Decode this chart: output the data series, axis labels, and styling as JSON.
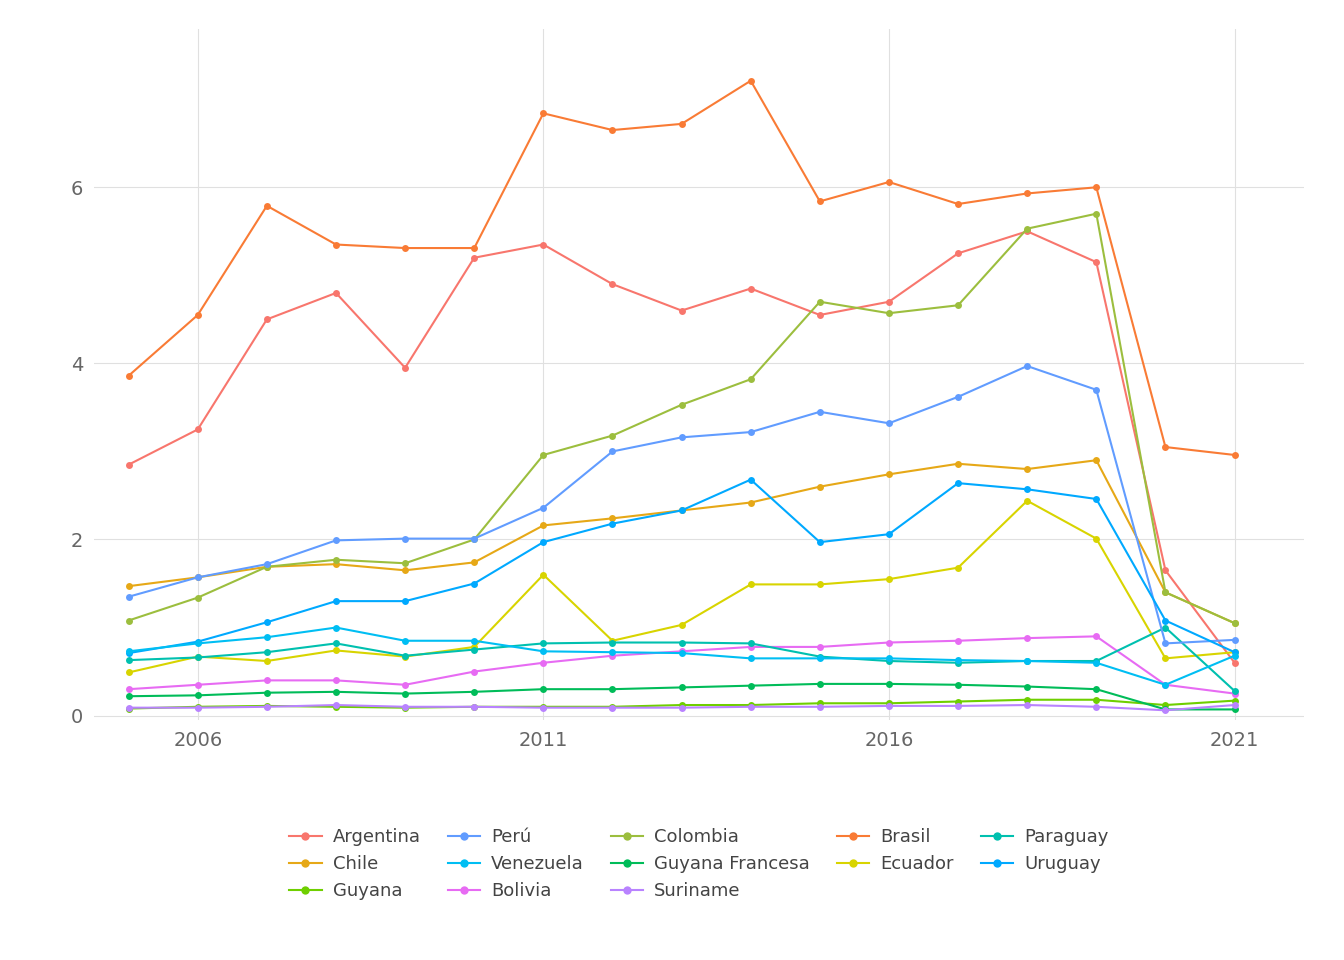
{
  "years": [
    2005,
    2006,
    2007,
    2008,
    2009,
    2010,
    2011,
    2012,
    2013,
    2014,
    2015,
    2016,
    2017,
    2018,
    2019,
    2020,
    2021
  ],
  "series": {
    "Argentina": {
      "color": "#F8766D",
      "values": [
        2.85,
        3.25,
        4.5,
        4.8,
        3.95,
        5.2,
        5.35,
        4.9,
        4.6,
        4.85,
        4.55,
        4.7,
        5.25,
        5.5,
        5.15,
        1.65,
        0.6
      ]
    },
    "Bolivia": {
      "color": "#E76BF3",
      "values": [
        0.3,
        0.35,
        0.4,
        0.4,
        0.35,
        0.5,
        0.6,
        0.68,
        0.73,
        0.78,
        0.78,
        0.83,
        0.85,
        0.88,
        0.9,
        0.35,
        0.25
      ]
    },
    "Brasil": {
      "color": "#F97B35",
      "values": [
        3.86,
        4.55,
        5.79,
        5.35,
        5.31,
        5.31,
        6.84,
        6.65,
        6.72,
        7.21,
        5.84,
        6.06,
        5.81,
        5.93,
        6.0,
        3.05,
        2.96
      ]
    },
    "Chile": {
      "color": "#E6A817",
      "values": [
        1.47,
        1.57,
        1.69,
        1.72,
        1.65,
        1.74,
        2.16,
        2.24,
        2.33,
        2.42,
        2.6,
        2.74,
        2.86,
        2.8,
        2.9,
        1.4,
        1.05
      ]
    },
    "Colombia": {
      "color": "#9CBE3E",
      "values": [
        1.08,
        1.34,
        1.69,
        1.77,
        1.73,
        2.0,
        2.96,
        3.18,
        3.53,
        3.82,
        4.7,
        4.57,
        4.66,
        5.53,
        5.7,
        1.4,
        1.05
      ]
    },
    "Ecuador": {
      "color": "#D8D400",
      "values": [
        0.49,
        0.67,
        0.62,
        0.74,
        0.67,
        0.78,
        1.6,
        0.85,
        1.03,
        1.49,
        1.49,
        1.55,
        1.68,
        2.44,
        2.01,
        0.65,
        0.72
      ]
    },
    "Guyana": {
      "color": "#6FCF00",
      "values": [
        0.08,
        0.1,
        0.11,
        0.1,
        0.09,
        0.1,
        0.1,
        0.1,
        0.12,
        0.12,
        0.14,
        0.14,
        0.16,
        0.18,
        0.18,
        0.12,
        0.17
      ]
    },
    "Guyana Francesa": {
      "color": "#00BC59",
      "values": [
        0.22,
        0.23,
        0.26,
        0.27,
        0.25,
        0.27,
        0.3,
        0.3,
        0.32,
        0.34,
        0.36,
        0.36,
        0.35,
        0.33,
        0.3,
        0.07,
        0.07
      ]
    },
    "Paraguay": {
      "color": "#00C0AF",
      "values": [
        0.63,
        0.66,
        0.72,
        0.82,
        0.68,
        0.75,
        0.82,
        0.83,
        0.83,
        0.82,
        0.67,
        0.62,
        0.6,
        0.62,
        0.62,
        1.0,
        0.28
      ]
    },
    "Perú": {
      "color": "#619CFF",
      "values": [
        1.35,
        1.57,
        1.72,
        1.99,
        2.01,
        2.01,
        2.36,
        3.0,
        3.16,
        3.22,
        3.45,
        3.32,
        3.62,
        3.97,
        3.7,
        0.82,
        0.86
      ]
    },
    "Suriname": {
      "color": "#B983FF",
      "values": [
        0.09,
        0.09,
        0.1,
        0.12,
        0.1,
        0.1,
        0.09,
        0.09,
        0.09,
        0.1,
        0.1,
        0.11,
        0.11,
        0.12,
        0.1,
        0.06,
        0.12
      ]
    },
    "Uruguay": {
      "color": "#00A9FF",
      "values": [
        0.71,
        0.84,
        1.06,
        1.3,
        1.3,
        1.5,
        1.97,
        2.18,
        2.33,
        2.68,
        1.97,
        2.06,
        2.64,
        2.57,
        2.46,
        1.08,
        0.72
      ]
    },
    "Venezuela": {
      "color": "#00BEF3",
      "values": [
        0.73,
        0.82,
        0.89,
        1.0,
        0.85,
        0.85,
        0.73,
        0.72,
        0.71,
        0.65,
        0.65,
        0.65,
        0.63,
        0.62,
        0.6,
        0.35,
        0.68
      ]
    }
  },
  "xlim": [
    2004.5,
    2022.0
  ],
  "ylim": [
    -0.05,
    7.8
  ],
  "yticks": [
    0,
    2,
    4,
    6
  ],
  "xticks": [
    2006,
    2011,
    2016,
    2021
  ],
  "background_color": "#FFFFFF",
  "grid_color": "#E0E0E0",
  "title": "",
  "legend_order": [
    "Argentina",
    "Chile",
    "Guyana",
    "Perú",
    "Venezuela",
    "Bolivia",
    "Colombia",
    "Guyana Francesa",
    "Suriname",
    "Brasil",
    "Ecuador",
    "Paraguay",
    "Uruguay"
  ]
}
